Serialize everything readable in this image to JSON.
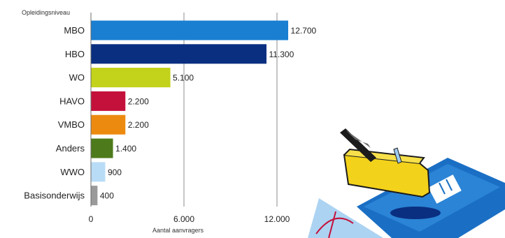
{
  "chart_data": {
    "type": "bar",
    "orientation": "horizontal",
    "title": "Opleidingsniveau",
    "xlabel": "Aantal aanvragers",
    "ylabel": "",
    "xlim": [
      0,
      12700
    ],
    "ticks": [
      0,
      6000,
      12000
    ],
    "tick_labels": [
      "0",
      "6.000",
      "12.000"
    ],
    "grid": true,
    "categories": [
      "MBO",
      "HBO",
      "WO",
      "HAVO",
      "VMBO",
      "Anders",
      "WWO",
      "Basisonderwijs"
    ],
    "values": [
      12700,
      11300,
      5100,
      2200,
      2200,
      1400,
      900,
      400
    ],
    "value_labels": [
      "12.700",
      "11.300",
      "5.100",
      "2.200",
      "2.200",
      "1.400",
      "900",
      "400"
    ],
    "colors": [
      "#1a7fd1",
      "#0a2f80",
      "#c3d21a",
      "#c4113b",
      "#ec8a10",
      "#4d7a1a",
      "#b9dcf6",
      "#9a9a9a"
    ]
  }
}
